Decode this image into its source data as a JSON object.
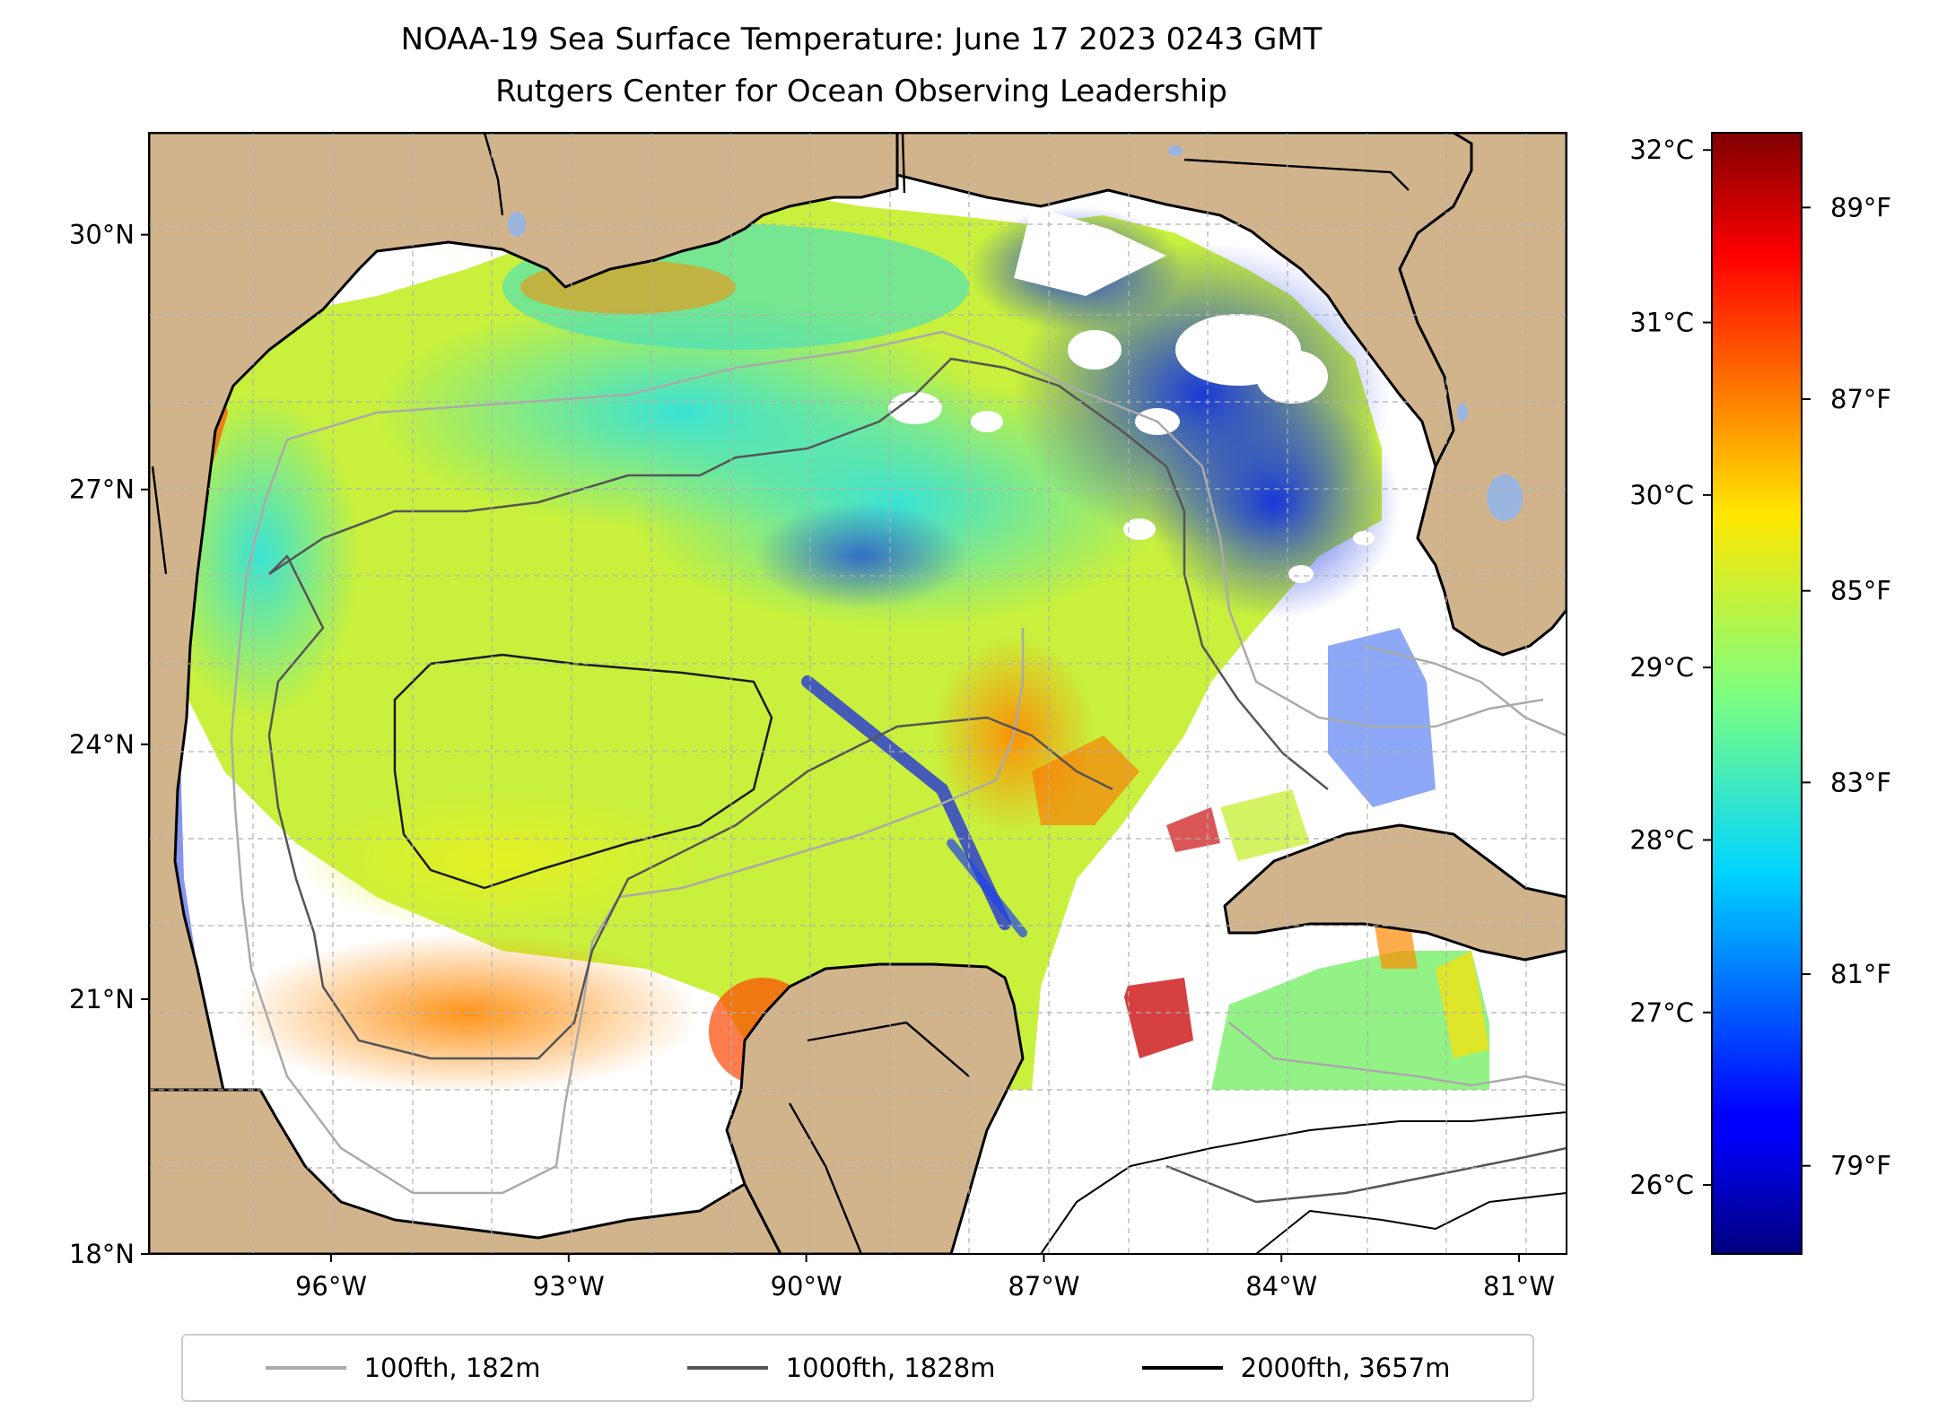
{
  "title": {
    "line1": "NOAA-19 Sea Surface Temperature: June 17 2023 0243 GMT",
    "line2": "Rutgers Center for Ocean Observing Leadership"
  },
  "map": {
    "lon_range": [
      -98.3,
      -80.4
    ],
    "lat_range": [
      18,
      31.2
    ],
    "lat_ticks": [
      {
        "value": 30,
        "label": "30°N"
      },
      {
        "value": 27,
        "label": "27°N"
      },
      {
        "value": 24,
        "label": "24°N"
      },
      {
        "value": 21,
        "label": "21°N"
      },
      {
        "value": 18,
        "label": "18°N"
      }
    ],
    "lon_ticks": [
      {
        "value": -96,
        "label": "96°W"
      },
      {
        "value": -93,
        "label": "93°W"
      },
      {
        "value": -90,
        "label": "90°W"
      },
      {
        "value": -87,
        "label": "87°W"
      },
      {
        "value": -84,
        "label": "84°W"
      },
      {
        "value": -81,
        "label": "81°W"
      }
    ],
    "gridlines": true,
    "land_color": "#d2b48c",
    "lake_color": "#9ab4e0",
    "no_data_color": "#ffffff",
    "data_southern_limit_lat": 20.0
  },
  "colorbar": {
    "colormap": "jet",
    "celsius_ticks": [
      {
        "value": 32,
        "label": "32°C"
      },
      {
        "value": 31,
        "label": "31°C"
      },
      {
        "value": 30,
        "label": "30°C"
      },
      {
        "value": 29,
        "label": "29°C"
      },
      {
        "value": 28,
        "label": "28°C"
      },
      {
        "value": 27,
        "label": "27°C"
      },
      {
        "value": 26,
        "label": "26°C"
      }
    ],
    "fahrenheit_ticks": [
      {
        "value": 89,
        "label": "89°F"
      },
      {
        "value": 87,
        "label": "87°F"
      },
      {
        "value": 85,
        "label": "85°F"
      },
      {
        "value": 83,
        "label": "83°F"
      },
      {
        "value": 81,
        "label": "81°F"
      },
      {
        "value": 79,
        "label": "79°F"
      }
    ]
  },
  "legend": {
    "position": "bottom-center",
    "items": [
      {
        "label": "100fth, 182m",
        "color": "#aaaaaa"
      },
      {
        "label": "1000fth, 1828m",
        "color": "#555555"
      },
      {
        "label": "2000fth, 3657m",
        "color": "#000000"
      }
    ]
  }
}
